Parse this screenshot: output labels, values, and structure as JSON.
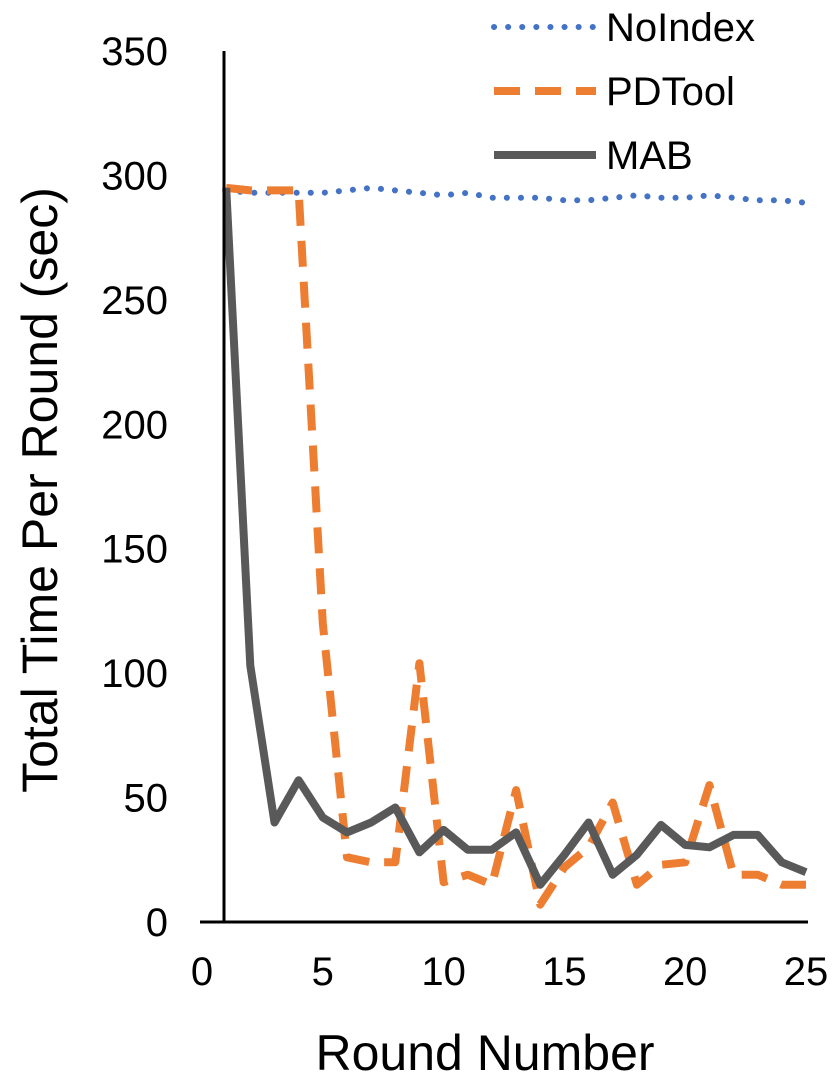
{
  "chart_data": {
    "type": "line",
    "title": "",
    "xlabel": "Round Number",
    "ylabel": "Total Time Per Round (sec)",
    "xlim": [
      0,
      25
    ],
    "ylim": [
      0,
      350
    ],
    "xticks": [
      0,
      5,
      10,
      15,
      20,
      25
    ],
    "yticks": [
      0,
      50,
      100,
      150,
      200,
      250,
      300,
      350
    ],
    "grid": false,
    "legend_position": "top-right",
    "x": [
      1,
      2,
      3,
      4,
      5,
      6,
      7,
      8,
      9,
      10,
      11,
      12,
      13,
      14,
      15,
      16,
      17,
      18,
      19,
      20,
      21,
      22,
      23,
      24,
      25
    ],
    "series": [
      {
        "name": "NoIndex",
        "style": "dotted",
        "color": "#4472C4",
        "values": [
          294,
          293,
          293,
          293,
          293,
          294,
          295,
          294,
          293,
          292,
          293,
          291,
          291,
          291,
          290,
          290,
          291,
          292,
          291,
          291,
          292,
          291,
          290,
          290,
          289
        ]
      },
      {
        "name": "PDTool",
        "style": "dashed",
        "color": "#ED7D31",
        "values": [
          295,
          294,
          294,
          294,
          120,
          26,
          24,
          24,
          104,
          16,
          19,
          15,
          53,
          7,
          22,
          30,
          48,
          15,
          23,
          24,
          55,
          19,
          19,
          15,
          15
        ]
      },
      {
        "name": "MAB",
        "style": "solid",
        "color": "#595959",
        "values": [
          295,
          103,
          40,
          57,
          42,
          36,
          40,
          46,
          28,
          37,
          29,
          29,
          36,
          15,
          27,
          40,
          19,
          27,
          39,
          31,
          30,
          35,
          35,
          24,
          20
        ]
      }
    ]
  }
}
